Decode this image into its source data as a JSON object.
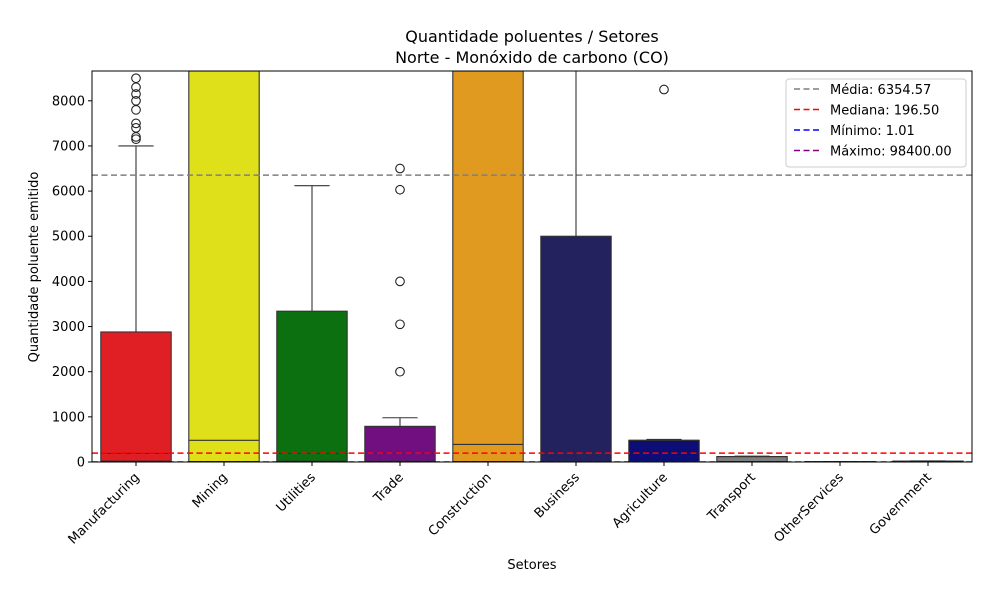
{
  "chart_data": {
    "type": "box",
    "title_line1": "Quantidade poluentes / Setores",
    "title_line2": "Norte - Monóxido de carbono (CO)",
    "xlabel": "Setores",
    "ylabel": "Quantidade poluente emitido",
    "ylim": [
      0,
      8660
    ],
    "yticks": [
      0,
      1000,
      2000,
      3000,
      4000,
      5000,
      6000,
      7000,
      8000
    ],
    "categories": [
      "Manufacturing",
      "Mining",
      "Utilities",
      "Trade",
      "Construction",
      "Business",
      "Agriculture",
      "Transport",
      "OtherServices",
      "Government"
    ],
    "boxes": [
      {
        "name": "Manufacturing",
        "color": "#e01f25",
        "q1": 20,
        "median": 190,
        "q3": 2880,
        "whisker_low": 1,
        "whisker_high": 7000,
        "outliers": [
          7150,
          7200,
          7400,
          7500,
          7800,
          8000,
          8150,
          8300,
          8500
        ]
      },
      {
        "name": "Mining",
        "color": "#e0e01a",
        "q1": 10,
        "median": 480,
        "q3": 8700,
        "whisker_low": 1,
        "whisker_high": 8700,
        "outliers": []
      },
      {
        "name": "Utilities",
        "color": "#0c7010",
        "q1": 20,
        "median": 190,
        "q3": 3340,
        "whisker_low": 1,
        "whisker_high": 6120,
        "outliers": []
      },
      {
        "name": "Trade",
        "color": "#720f80",
        "q1": 20,
        "median": 190,
        "q3": 790,
        "whisker_low": 1,
        "whisker_high": 980,
        "outliers": [
          2000,
          3050,
          4000,
          6030,
          6500
        ]
      },
      {
        "name": "Construction",
        "color": "#e19a20",
        "q1": 10,
        "median": 390,
        "q3": 8700,
        "whisker_low": 1,
        "whisker_high": 8700,
        "outliers": []
      },
      {
        "name": "Business",
        "color": "#24215f",
        "q1": 10,
        "median": 10,
        "q3": 5000,
        "whisker_low": 1,
        "whisker_high": 8700,
        "outliers": []
      },
      {
        "name": "Agriculture",
        "color": "#0c0e76",
        "q1": 10,
        "median": 480,
        "q3": 480,
        "whisker_low": 1,
        "whisker_high": 500,
        "outliers": [
          8250
        ]
      },
      {
        "name": "Transport",
        "color": "#7f7f7f",
        "q1": 10,
        "median": 120,
        "q3": 120,
        "whisker_low": 1,
        "whisker_high": 130,
        "outliers": []
      },
      {
        "name": "OtherServices",
        "color": "#555555",
        "q1": 2,
        "median": 5,
        "q3": 8,
        "whisker_low": 1,
        "whisker_high": 10,
        "outliers": []
      },
      {
        "name": "Government",
        "color": "#555555",
        "q1": 2,
        "median": 10,
        "q3": 20,
        "whisker_low": 1,
        "whisker_high": 25,
        "outliers": []
      }
    ],
    "reference_lines": [
      {
        "label": "Média: 6354.57",
        "value": 6354.57,
        "color": "#7f7f7f"
      },
      {
        "label": "Mediana: 196.50",
        "value": 196.5,
        "color": "#ff0000"
      },
      {
        "label": "Mínimo: 1.01",
        "value": 1.01,
        "color": "#0000ff"
      },
      {
        "label": "Máximo: 98400.00",
        "value": 98400.0,
        "color": "#800080"
      }
    ],
    "legend_position": "top-right"
  }
}
